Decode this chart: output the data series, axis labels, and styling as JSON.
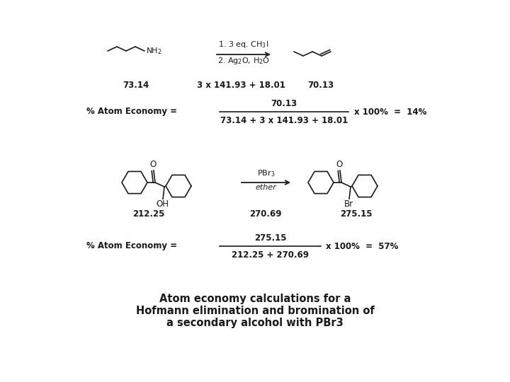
{
  "title_line1": "Atom economy calculations for a",
  "title_line2": "Hofmann elimination and bromination of",
  "title_line3": "a secondary alcohol with PBr3",
  "bg_color": "#ffffff",
  "text_color": "#1a1a1a",
  "reaction1": {
    "mw_reactant": "73.14",
    "mw_reagent": "3 x 141.93 + 18.01",
    "mw_product": "70.13",
    "reagent_line1": "1. 3 eq. CH$_3$I",
    "reagent_line2": "2. Ag$_2$O, H$_2$O"
  },
  "atom_economy1": {
    "numerator": "70.13",
    "denominator": "73.14 + 3 x 141.93 + 18.01",
    "result": "14%"
  },
  "reaction2": {
    "mw_reactant": "212.25",
    "mw_reagent": "270.69",
    "mw_product": "275.15",
    "reagent_line1": "PBr$_3$",
    "reagent_line2": "ether"
  },
  "atom_economy2": {
    "numerator": "275.15",
    "denominator": "212.25 + 270.69",
    "result": "57%"
  },
  "fig_width": 7.2,
  "fig_height": 5.4,
  "dpi": 100
}
